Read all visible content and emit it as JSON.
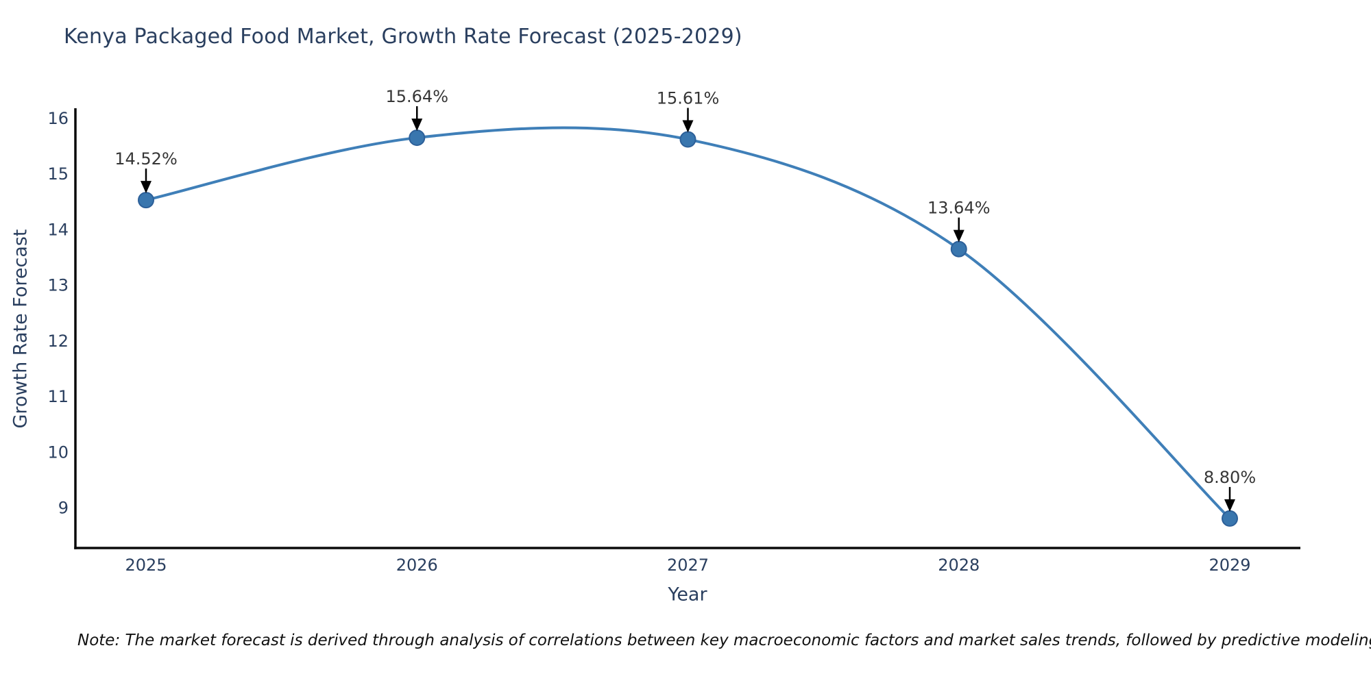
{
  "chart": {
    "title": "Kenya Packaged Food Market, Growth Rate Forecast (2025-2029)",
    "note": "Note: The market forecast is derived through analysis of correlations between key macroeconomic factors and market sales trends, followed by predictive modeling to project future sales",
    "colors": {
      "line": "#3f7fb8",
      "marker_fill": "#3976ae",
      "marker_edge": "#2d6099",
      "axis": "#0a0a0a",
      "text": "#2a3f5f",
      "annotation_text": "#363636",
      "arrow": "#000000",
      "background": "#ffffff"
    }
  },
  "chart_data": {
    "type": "line",
    "title": "Kenya Packaged Food Market, Growth Rate Forecast (2025-2029)",
    "categories": [
      "2025",
      "2026",
      "2027",
      "2028",
      "2029"
    ],
    "series": [
      {
        "name": "Growth Rate Forecast",
        "values": [
          14.52,
          15.64,
          15.61,
          13.64,
          8.8
        ]
      }
    ],
    "point_labels": [
      "14.52%",
      "15.64%",
      "15.61%",
      "13.64%",
      "8.80%"
    ],
    "xlabel": "Year",
    "ylabel": "Growth Rate Forecast",
    "yticks": [
      9,
      10,
      11,
      12,
      13,
      14,
      15,
      16
    ],
    "ylim": [
      8.27,
      16.17
    ],
    "grid": false,
    "legend_position": "none",
    "line_style": "smooth-spline",
    "marker": "circle",
    "annotations": "value labels with down arrows above each point",
    "footnote": "Note: The market forecast is derived through analysis of correlations between key macroeconomic factors and market sales trends, followed by predictive modeling to project future sales"
  }
}
